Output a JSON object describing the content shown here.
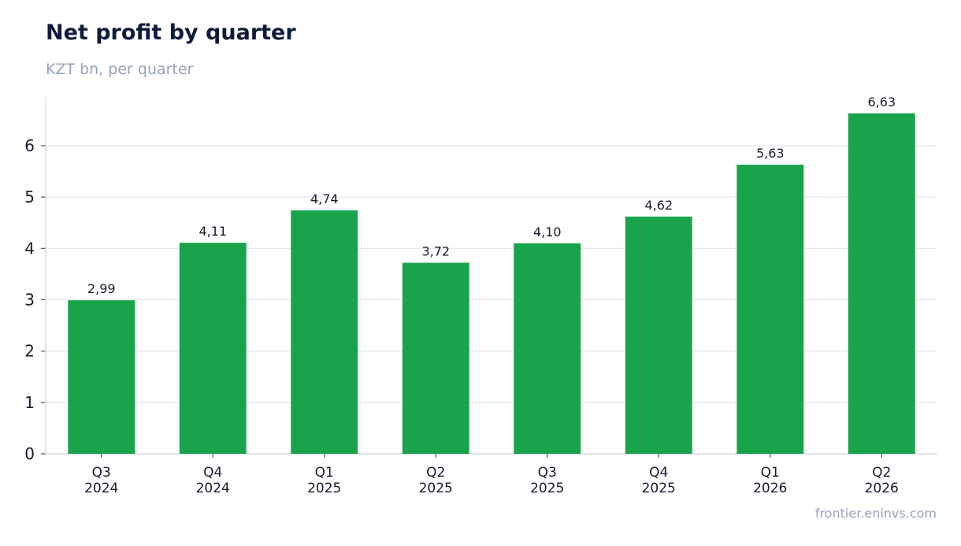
{
  "title": "Net profit by quarter",
  "subtitle": "KZT bn, per quarter",
  "source": "frontier.eninvs.com",
  "colors": {
    "bar": "#19a34a",
    "title": "#0f1b3d",
    "muted": "#97a3b8",
    "grid": "#e3e7ee",
    "axis": "#cfd5df",
    "text": "#1a1a2e"
  },
  "chart_data": {
    "type": "bar",
    "categories": [
      [
        "Q3",
        "2024"
      ],
      [
        "Q4",
        "2024"
      ],
      [
        "Q1",
        "2025"
      ],
      [
        "Q2",
        "2025"
      ],
      [
        "Q3",
        "2025"
      ],
      [
        "Q4",
        "2025"
      ],
      [
        "Q1",
        "2026"
      ],
      [
        "Q2",
        "2026"
      ]
    ],
    "values": [
      2.99,
      4.11,
      4.74,
      3.72,
      4.1,
      4.62,
      5.63,
      6.63
    ],
    "value_labels": [
      "2,99",
      "4,11",
      "4,74",
      "3,72",
      "4,10",
      "4,62",
      "5,63",
      "6,63"
    ],
    "yticks": [
      0,
      1,
      2,
      3,
      4,
      5,
      6
    ],
    "ylim": [
      0,
      6.95
    ],
    "grid": "horizontal"
  }
}
